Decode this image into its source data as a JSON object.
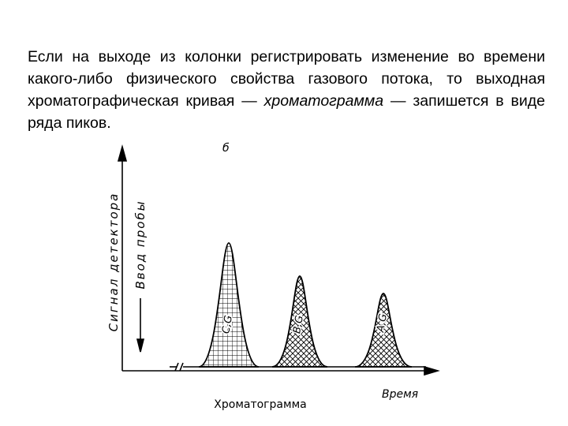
{
  "paragraph": {
    "before": "Если на выходе из колонки регистрировать изменение во времени какого-либо физического свойства газового потока, то выходная хроматографическая кривая —",
    "emphasis": "хроматограмма",
    "after": "— запишется в виде ряда пиков."
  },
  "figure": {
    "panel_label": "б",
    "y_axis_label": "Сигнал детектора",
    "injection_label": "Ввод пробы",
    "peaks": [
      {
        "label": "C,G"
      },
      {
        "label": "B,G"
      },
      {
        "label": "A,G"
      }
    ],
    "x_axis_label": "Время",
    "caption": "Хроматограмма"
  }
}
